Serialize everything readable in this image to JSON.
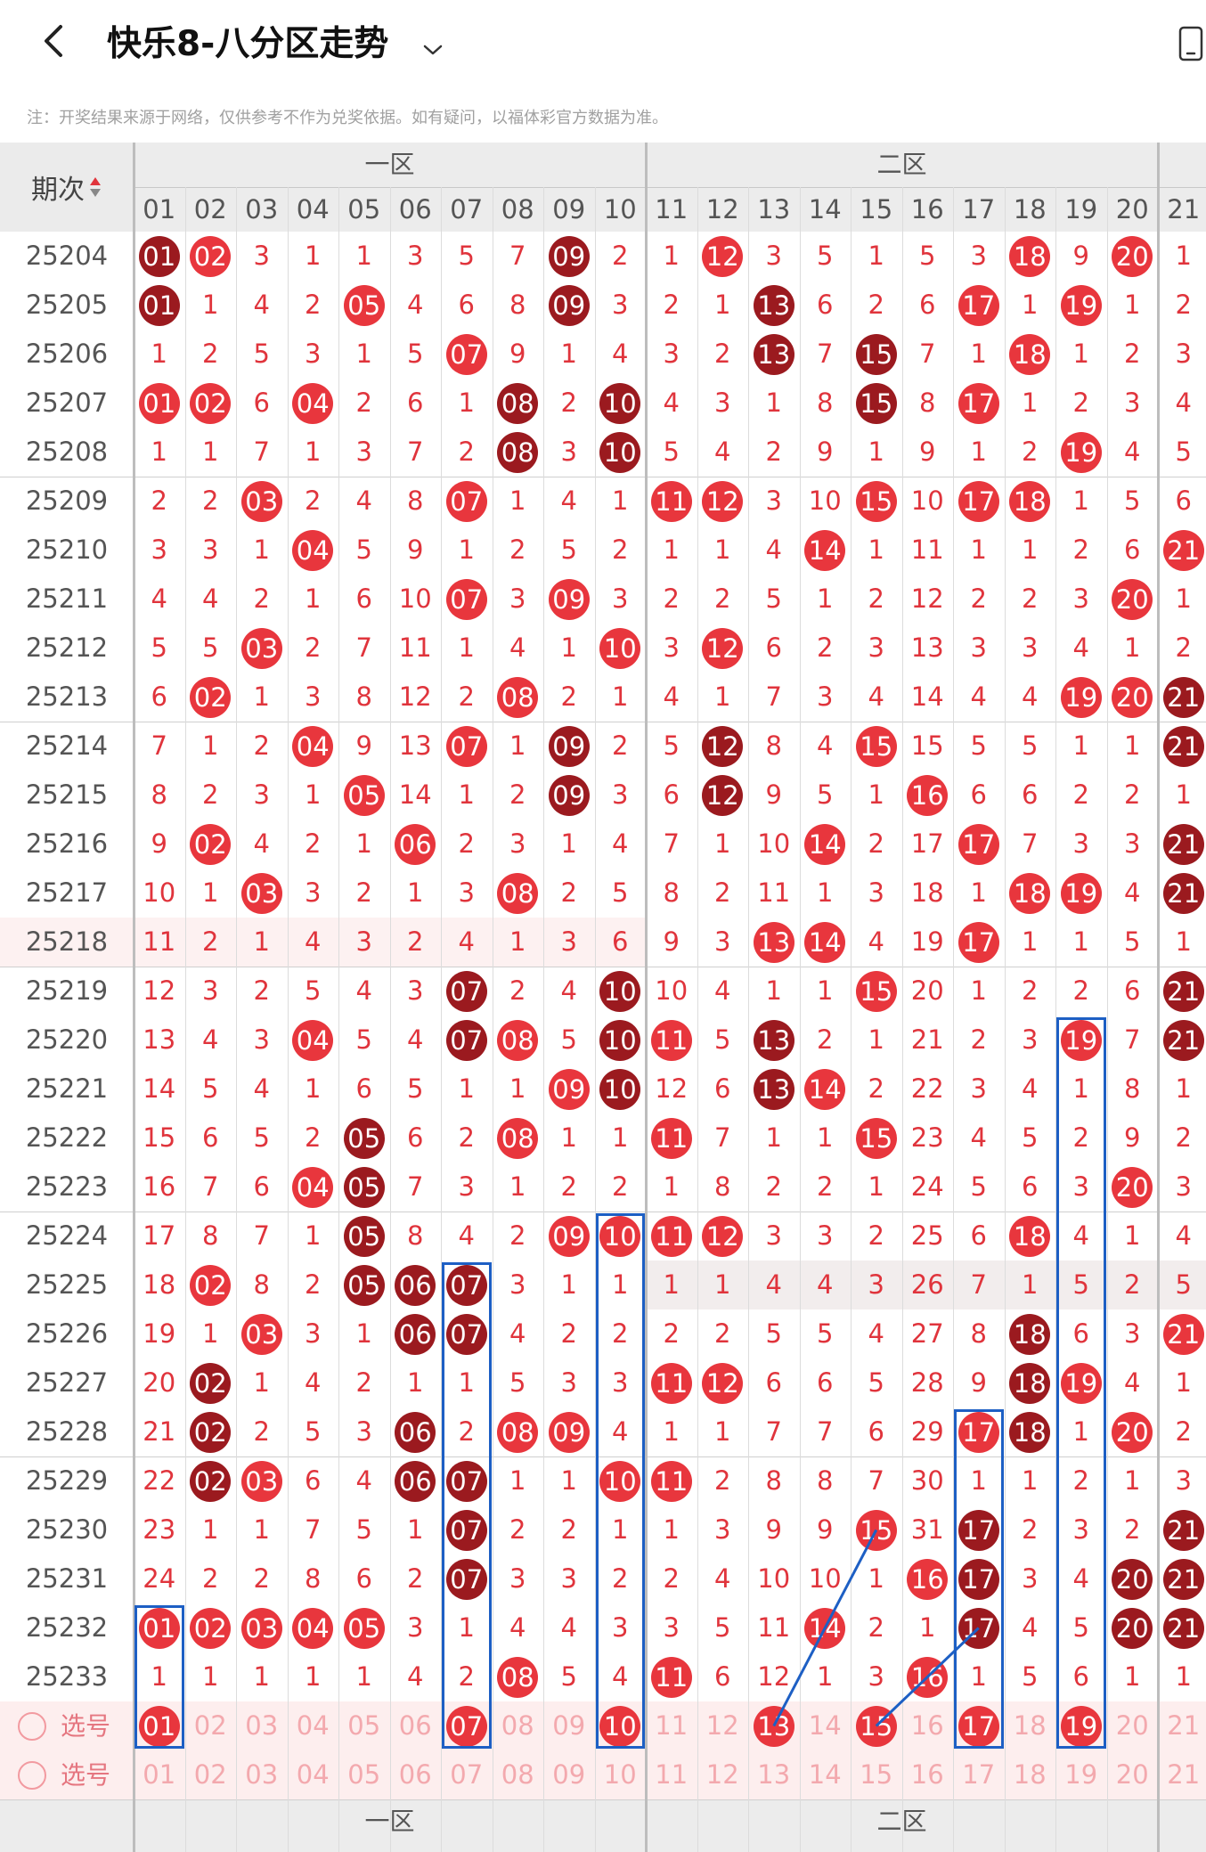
{
  "header": {
    "title": "快乐8-八分区走势",
    "back_icon": "chevron-left-icon",
    "dropdown_icon": "chevron-down-icon",
    "right_icon": "phone-icon"
  },
  "notice": "注：开奖结果来源于网络，仅供参考不作为兑奖依据。如有疑问，以福体彩官方数据为准。",
  "table": {
    "sort_label": "期次",
    "zones": [
      "一区",
      "二区"
    ],
    "columns": [
      "01",
      "02",
      "03",
      "04",
      "05",
      "06",
      "07",
      "08",
      "09",
      "10",
      "11",
      "12",
      "13",
      "14",
      "15",
      "16",
      "17",
      "18",
      "19",
      "20",
      "21"
    ],
    "rows": [
      {
        "issue": "25204",
        "cells": [
          "01",
          "02",
          "3",
          "1",
          "1",
          "3",
          "5",
          "7",
          "09",
          "2",
          "1",
          "12",
          "3",
          "5",
          "1",
          "5",
          "3",
          "18",
          "9",
          "20",
          "1"
        ]
      },
      {
        "issue": "25205",
        "cells": [
          "01",
          "1",
          "4",
          "2",
          "05",
          "4",
          "6",
          "8",
          "09",
          "3",
          "2",
          "1",
          "13",
          "6",
          "2",
          "6",
          "17",
          "1",
          "19",
          "1",
          "2"
        ]
      },
      {
        "issue": "25206",
        "cells": [
          "1",
          "2",
          "5",
          "3",
          "1",
          "5",
          "07",
          "9",
          "1",
          "4",
          "3",
          "2",
          "13",
          "7",
          "15",
          "7",
          "1",
          "18",
          "1",
          "2",
          "3"
        ]
      },
      {
        "issue": "25207",
        "cells": [
          "01",
          "02",
          "6",
          "04",
          "2",
          "6",
          "1",
          "08",
          "2",
          "10",
          "4",
          "3",
          "1",
          "8",
          "15",
          "8",
          "17",
          "1",
          "2",
          "3",
          "4"
        ]
      },
      {
        "issue": "25208",
        "cells": [
          "1",
          "1",
          "7",
          "1",
          "3",
          "7",
          "2",
          "08",
          "3",
          "10",
          "5",
          "4",
          "2",
          "9",
          "1",
          "9",
          "1",
          "2",
          "19",
          "4",
          "5"
        ]
      },
      {
        "issue": "25209",
        "cells": [
          "2",
          "2",
          "03",
          "2",
          "4",
          "8",
          "07",
          "1",
          "4",
          "1",
          "11",
          "12",
          "3",
          "10",
          "15",
          "10",
          "17",
          "18",
          "1",
          "5",
          "6"
        ]
      },
      {
        "issue": "25210",
        "cells": [
          "3",
          "3",
          "1",
          "04",
          "5",
          "9",
          "1",
          "2",
          "5",
          "2",
          "1",
          "1",
          "4",
          "14",
          "1",
          "11",
          "1",
          "1",
          "2",
          "6",
          "21"
        ]
      },
      {
        "issue": "25211",
        "cells": [
          "4",
          "4",
          "2",
          "1",
          "6",
          "10",
          "07",
          "3",
          "09",
          "3",
          "2",
          "2",
          "5",
          "1",
          "2",
          "12",
          "2",
          "2",
          "3",
          "20",
          "1"
        ]
      },
      {
        "issue": "25212",
        "cells": [
          "5",
          "5",
          "03",
          "2",
          "7",
          "11",
          "1",
          "4",
          "1",
          "10",
          "3",
          "12",
          "6",
          "2",
          "3",
          "13",
          "3",
          "3",
          "4",
          "1",
          "2"
        ]
      },
      {
        "issue": "25213",
        "cells": [
          "6",
          "02",
          "1",
          "3",
          "8",
          "12",
          "2",
          "08",
          "2",
          "1",
          "4",
          "1",
          "7",
          "3",
          "4",
          "14",
          "4",
          "4",
          "19",
          "20",
          "21"
        ]
      },
      {
        "issue": "25214",
        "cells": [
          "7",
          "1",
          "2",
          "04",
          "9",
          "13",
          "07",
          "1",
          "09",
          "2",
          "5",
          "12",
          "8",
          "4",
          "15",
          "15",
          "5",
          "5",
          "1",
          "1",
          "21"
        ]
      },
      {
        "issue": "25215",
        "cells": [
          "8",
          "2",
          "3",
          "1",
          "05",
          "14",
          "1",
          "2",
          "09",
          "3",
          "6",
          "12",
          "9",
          "5",
          "1",
          "16",
          "6",
          "6",
          "2",
          "2",
          "1"
        ]
      },
      {
        "issue": "25216",
        "cells": [
          "9",
          "02",
          "4",
          "2",
          "1",
          "06",
          "2",
          "3",
          "1",
          "4",
          "7",
          "1",
          "10",
          "14",
          "2",
          "17",
          "17",
          "7",
          "3",
          "3",
          "21"
        ]
      },
      {
        "issue": "25217",
        "cells": [
          "10",
          "1",
          "03",
          "3",
          "2",
          "1",
          "3",
          "08",
          "2",
          "5",
          "8",
          "2",
          "11",
          "1",
          "3",
          "18",
          "1",
          "18",
          "19",
          "4",
          "21"
        ]
      },
      {
        "issue": "25218",
        "cells": [
          "11",
          "2",
          "1",
          "4",
          "3",
          "2",
          "4",
          "1",
          "3",
          "6",
          "9",
          "3",
          "13",
          "14",
          "4",
          "19",
          "17",
          "1",
          "1",
          "5",
          "1"
        ]
      },
      {
        "issue": "25219",
        "cells": [
          "12",
          "3",
          "2",
          "5",
          "4",
          "3",
          "07",
          "2",
          "4",
          "10",
          "10",
          "4",
          "1",
          "1",
          "15",
          "20",
          "1",
          "2",
          "2",
          "6",
          "21"
        ]
      },
      {
        "issue": "25220",
        "cells": [
          "13",
          "4",
          "3",
          "04",
          "5",
          "4",
          "07",
          "08",
          "5",
          "10",
          "11",
          "5",
          "13",
          "2",
          "1",
          "21",
          "2",
          "3",
          "19",
          "7",
          "21"
        ]
      },
      {
        "issue": "25221",
        "cells": [
          "14",
          "5",
          "4",
          "1",
          "6",
          "5",
          "1",
          "1",
          "09",
          "10",
          "12",
          "6",
          "13",
          "14",
          "2",
          "22",
          "3",
          "4",
          "1",
          "8",
          "1"
        ]
      },
      {
        "issue": "25222",
        "cells": [
          "15",
          "6",
          "5",
          "2",
          "05",
          "6",
          "2",
          "08",
          "1",
          "1",
          "11",
          "7",
          "1",
          "1",
          "15",
          "23",
          "4",
          "5",
          "2",
          "9",
          "2"
        ]
      },
      {
        "issue": "25223",
        "cells": [
          "16",
          "7",
          "6",
          "04",
          "05",
          "7",
          "3",
          "1",
          "2",
          "2",
          "1",
          "8",
          "2",
          "2",
          "1",
          "24",
          "5",
          "6",
          "3",
          "20",
          "3"
        ]
      },
      {
        "issue": "25224",
        "cells": [
          "17",
          "8",
          "7",
          "1",
          "05",
          "8",
          "4",
          "2",
          "09",
          "10",
          "11",
          "12",
          "3",
          "3",
          "2",
          "25",
          "6",
          "18",
          "4",
          "1",
          "4"
        ]
      },
      {
        "issue": "25225",
        "cells": [
          "18",
          "02",
          "8",
          "2",
          "05",
          "06",
          "07",
          "3",
          "1",
          "1",
          "1",
          "1",
          "4",
          "4",
          "3",
          "26",
          "7",
          "1",
          "5",
          "2",
          "5"
        ]
      },
      {
        "issue": "25226",
        "cells": [
          "19",
          "1",
          "03",
          "3",
          "1",
          "06",
          "07",
          "4",
          "2",
          "2",
          "2",
          "2",
          "5",
          "5",
          "4",
          "27",
          "8",
          "18",
          "6",
          "3",
          "21"
        ]
      },
      {
        "issue": "25227",
        "cells": [
          "20",
          "02",
          "1",
          "4",
          "2",
          "1",
          "1",
          "5",
          "3",
          "3",
          "11",
          "12",
          "6",
          "6",
          "5",
          "28",
          "9",
          "18",
          "19",
          "4",
          "1"
        ]
      },
      {
        "issue": "25228",
        "cells": [
          "21",
          "02",
          "2",
          "5",
          "3",
          "06",
          "2",
          "08",
          "09",
          "4",
          "1",
          "1",
          "7",
          "7",
          "6",
          "29",
          "17",
          "18",
          "1",
          "20",
          "2"
        ]
      },
      {
        "issue": "25229",
        "cells": [
          "22",
          "02",
          "03",
          "6",
          "4",
          "06",
          "07",
          "1",
          "1",
          "10",
          "11",
          "2",
          "8",
          "8",
          "7",
          "30",
          "1",
          "1",
          "2",
          "1",
          "3"
        ]
      },
      {
        "issue": "25230",
        "cells": [
          "23",
          "1",
          "1",
          "7",
          "5",
          "1",
          "07",
          "2",
          "2",
          "1",
          "1",
          "3",
          "9",
          "9",
          "15",
          "31",
          "17",
          "2",
          "3",
          "2",
          "21"
        ]
      },
      {
        "issue": "25231",
        "cells": [
          "24",
          "2",
          "2",
          "8",
          "6",
          "2",
          "07",
          "3",
          "3",
          "2",
          "2",
          "4",
          "10",
          "10",
          "1",
          "16",
          "17",
          "3",
          "4",
          "20",
          "21"
        ]
      },
      {
        "issue": "25232",
        "cells": [
          "01",
          "02",
          "03",
          "04",
          "05",
          "3",
          "1",
          "4",
          "4",
          "3",
          "3",
          "5",
          "11",
          "14",
          "2",
          "1",
          "17",
          "4",
          "5",
          "20",
          "21"
        ]
      },
      {
        "issue": "25233",
        "cells": [
          "1",
          "1",
          "1",
          "1",
          "1",
          "4",
          "2",
          "08",
          "5",
          "4",
          "11",
          "6",
          "12",
          "1",
          "3",
          "16",
          "1",
          "5",
          "6",
          "1",
          "1"
        ]
      }
    ],
    "pick_rows": [
      {
        "label": "选号",
        "cells": [
          "01",
          "02",
          "03",
          "04",
          "05",
          "06",
          "07",
          "08",
          "09",
          "10",
          "11",
          "12",
          "13",
          "14",
          "15",
          "16",
          "17",
          "18",
          "19",
          "20",
          "21"
        ]
      },
      {
        "label": "选号",
        "cells": [
          "01",
          "02",
          "03",
          "04",
          "05",
          "06",
          "07",
          "08",
          "09",
          "10",
          "11",
          "12",
          "13",
          "14",
          "15",
          "16",
          "17",
          "18",
          "19",
          "20",
          "21"
        ]
      }
    ],
    "picked_row1": [
      "01",
      "07",
      "10",
      "13",
      "15",
      "17",
      "19"
    ],
    "colors": {
      "hit": "#e8363d",
      "streak": "#9b1a1f",
      "miss": "#e0343c",
      "pick": "#f3a9ae",
      "annotation": "#1d5fc4"
    }
  }
}
